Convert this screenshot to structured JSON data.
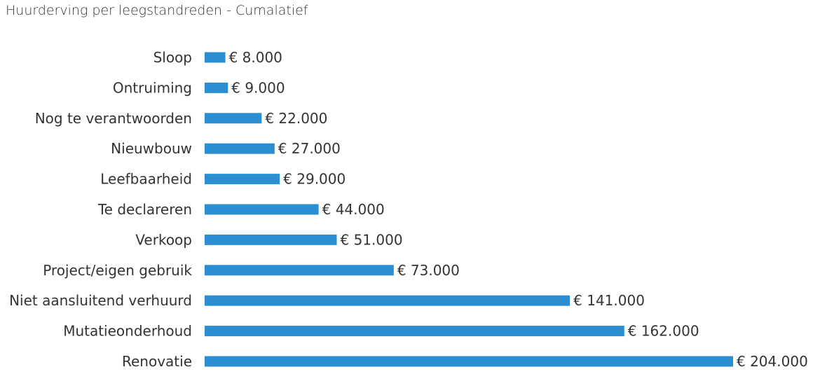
{
  "chart_data": {
    "type": "bar",
    "orientation": "horizontal",
    "title": "Huurderving per leegstandreden - Cumalatief",
    "xlabel": "",
    "ylabel": "",
    "grid": false,
    "legend": "none",
    "bar_color": "#2b8ed0",
    "xlim": [
      0,
      204000
    ],
    "categories": [
      "Sloop",
      "Ontruiming",
      "Nog te verantwoorden",
      "Nieuwbouw",
      "Leefbaarheid",
      "Te declareren",
      "Verkoop",
      "Project/eigen gebruik",
      "Niet aansluitend verhuurd",
      "Mutatieonderhoud",
      "Renovatie"
    ],
    "values": [
      8000,
      9000,
      22000,
      27000,
      29000,
      44000,
      51000,
      73000,
      141000,
      162000,
      204000
    ],
    "value_labels": [
      "€ 8.000",
      "€ 9.000",
      "€ 22.000",
      "€ 27.000",
      "€ 29.000",
      "€ 44.000",
      "€ 51.000",
      "€ 73.000",
      "€ 141.000",
      "€ 162.000",
      "€ 204.000"
    ]
  }
}
